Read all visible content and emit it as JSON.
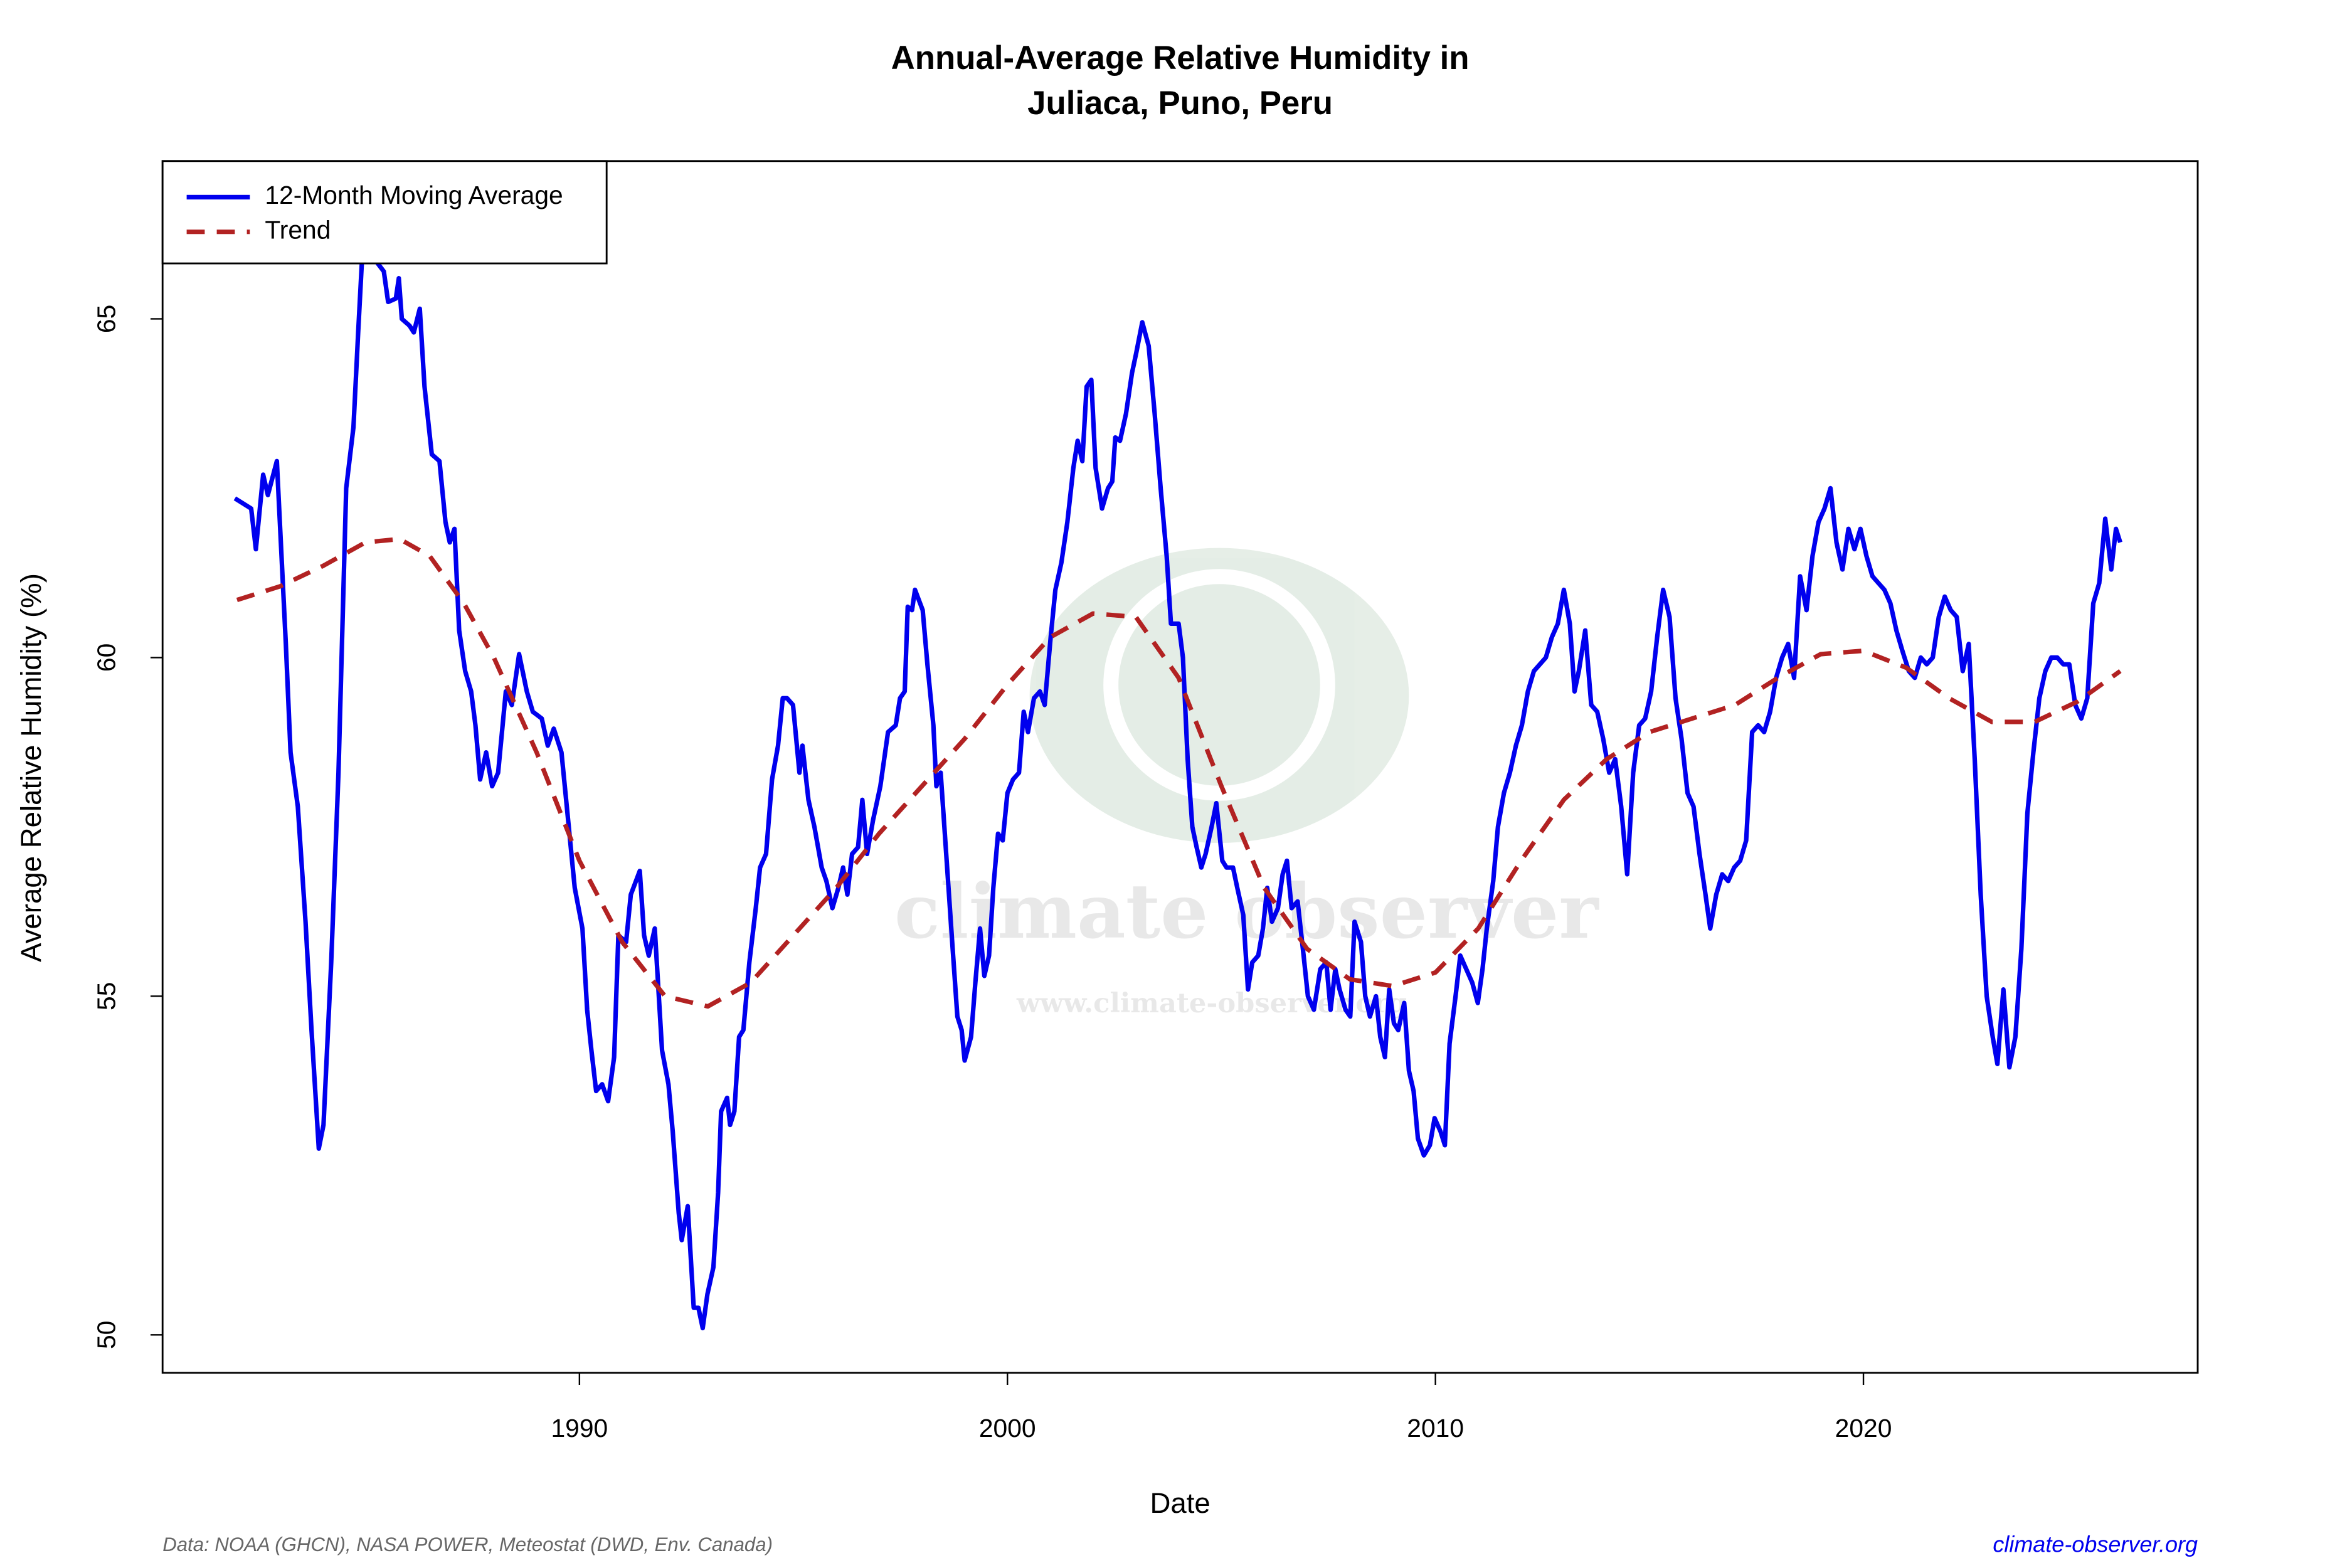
{
  "chart_data": {
    "type": "line",
    "title": "Annual-Average Relative Humidity in",
    "subtitle": "Juliaca, Puno, Peru",
    "x_label": "Date",
    "y_label": "Average Relative Humidity (%)",
    "source": "Data: NOAA (GHCN), NASA POWER, Meteostat (DWD, Env. Canada)",
    "site": "climate-observer.org",
    "watermark": "climate observer",
    "watermark_url": "www.climate-observer.org",
    "xlim": [
      1980.26,
      2027.81
    ],
    "ylim": [
      49.44,
      67.33
    ],
    "xticks": [
      1990,
      2000,
      2010,
      2020
    ],
    "yticks": [
      50,
      55,
      60,
      65
    ],
    "legend": "top-left",
    "series": [
      {
        "name": "12-Month Moving Average",
        "color": "#0000ee",
        "style": "solid",
        "x": [
          1981.95,
          1982.33,
          1982.44,
          1982.61,
          1982.72,
          1982.93,
          1983.14,
          1983.25,
          1983.42,
          1983.6,
          1983.74,
          1983.91,
          1984.02,
          1984.2,
          1984.37,
          1984.55,
          1984.72,
          1984.83,
          1984.93,
          1985.25,
          1985.43,
          1985.53,
          1985.71,
          1985.78,
          1985.85,
          1986.03,
          1986.13,
          1986.27,
          1986.38,
          1986.55,
          1986.73,
          1986.87,
          1986.97,
          1987.08,
          1987.19,
          1987.33,
          1987.47,
          1987.57,
          1987.68,
          1987.82,
          1987.96,
          1988.1,
          1988.28,
          1988.42,
          1988.59,
          1988.77,
          1988.91,
          1989.12,
          1989.26,
          1989.4,
          1989.58,
          1989.72,
          1989.89,
          1990.07,
          1990.18,
          1990.28,
          1990.39,
          1990.53,
          1990.67,
          1990.81,
          1990.91,
          1991.09,
          1991.2,
          1991.41,
          1991.51,
          1991.62,
          1991.76,
          1991.93,
          1992.08,
          1992.18,
          1992.32,
          1992.39,
          1992.53,
          1992.67,
          1992.78,
          1992.88,
          1992.99,
          1993.13,
          1993.24,
          1993.31,
          1993.45,
          1993.52,
          1993.62,
          1993.73,
          1993.83,
          1993.97,
          1994.12,
          1994.22,
          1994.36,
          1994.5,
          1994.64,
          1994.75,
          1994.85,
          1994.99,
          1995.14,
          1995.21,
          1995.35,
          1995.49,
          1995.66,
          1995.77,
          1995.91,
          1996.05,
          1996.16,
          1996.26,
          1996.37,
          1996.51,
          1996.61,
          1996.72,
          1996.86,
          1997.03,
          1997.21,
          1997.39,
          1997.49,
          1997.6,
          1997.67,
          1997.77,
          1997.84,
          1998.02,
          1998.13,
          1998.27,
          1998.34,
          1998.44,
          1998.58,
          1998.72,
          1998.83,
          1998.93,
          1999.0,
          1999.15,
          1999.25,
          1999.36,
          1999.46,
          1999.57,
          1999.67,
          1999.78,
          1999.89,
          2000.0,
          2000.13,
          2000.27,
          2000.38,
          2000.48,
          2000.62,
          2000.76,
          2000.87,
          2001.01,
          2001.12,
          2001.26,
          2001.4,
          2001.54,
          2001.64,
          2001.75,
          2001.85,
          2001.96,
          2002.06,
          2002.21,
          2002.35,
          2002.45,
          2002.52,
          2002.63,
          2002.77,
          2002.91,
          2003.01,
          2003.15,
          2003.3,
          2003.44,
          2003.58,
          2003.72,
          2003.82,
          2004.0,
          2004.1,
          2004.21,
          2004.32,
          2004.42,
          2004.53,
          2004.63,
          2004.77,
          2004.88,
          2005.02,
          2005.12,
          2005.27,
          2005.37,
          2005.51,
          2005.62,
          2005.72,
          2005.86,
          2005.97,
          2006.07,
          2006.18,
          2006.32,
          2006.43,
          2006.53,
          2006.64,
          2006.78,
          2006.92,
          2007.02,
          2007.16,
          2007.31,
          2007.45,
          2007.55,
          2007.66,
          2007.76,
          2007.9,
          2008.01,
          2008.11,
          2008.26,
          2008.36,
          2008.47,
          2008.61,
          2008.71,
          2008.82,
          2008.92,
          2009.03,
          2009.13,
          2009.27,
          2009.38,
          2009.49,
          2009.59,
          2009.73,
          2009.87,
          2009.98,
          2010.12,
          2010.22,
          2010.33,
          2010.47,
          2010.58,
          2010.72,
          2010.86,
          2010.99,
          2011.1,
          2011.2,
          2011.35,
          2011.46,
          2011.6,
          2011.74,
          2011.88,
          2012.02,
          2012.16,
          2012.3,
          2012.44,
          2012.58,
          2012.72,
          2012.86,
          2013.0,
          2013.14,
          2013.25,
          2013.35,
          2013.5,
          2013.64,
          2013.78,
          2013.92,
          2014.06,
          2014.2,
          2014.34,
          2014.48,
          2014.62,
          2014.76,
          2014.9,
          2015.04,
          2015.18,
          2015.32,
          2015.47,
          2015.61,
          2015.75,
          2015.89,
          2016.03,
          2016.17,
          2016.31,
          2016.42,
          2016.56,
          2016.7,
          2016.84,
          2016.98,
          2017.12,
          2017.26,
          2017.4,
          2017.54,
          2017.68,
          2017.82,
          2017.96,
          2018.1,
          2018.24,
          2018.38,
          2018.52,
          2018.67,
          2018.81,
          2018.95,
          2019.09,
          2019.23,
          2019.37,
          2019.51,
          2019.65,
          2019.79,
          2019.93,
          2020.07,
          2020.21,
          2020.35,
          2020.49,
          2020.63,
          2020.77,
          2020.91,
          2021.06,
          2021.2,
          2021.34,
          2021.48,
          2021.62,
          2021.76,
          2021.9,
          2022.04,
          2022.18,
          2022.32,
          2022.46,
          2022.6,
          2022.74,
          2022.88,
          2023.02,
          2023.13,
          2023.27,
          2023.41,
          2023.55,
          2023.69,
          2023.83,
          2023.97,
          2024.11,
          2024.25,
          2024.39,
          2024.53,
          2024.67,
          2024.81,
          2024.95,
          2025.09,
          2025.23,
          2025.37,
          2025.51,
          2025.65,
          2025.79,
          2025.9,
          2026.0
        ],
        "values": [
          62.35,
          62.2,
          61.6,
          62.7,
          62.4,
          62.9,
          60.2,
          58.6,
          57.8,
          56.1,
          54.5,
          52.75,
          53.1,
          55.5,
          58.3,
          62.5,
          63.4,
          64.8,
          66.0,
          65.85,
          65.7,
          65.25,
          65.3,
          65.6,
          65.0,
          64.9,
          64.8,
          65.15,
          64.0,
          63.0,
          62.9,
          62.0,
          61.7,
          61.9,
          60.4,
          59.8,
          59.5,
          59.0,
          58.2,
          58.6,
          58.1,
          58.3,
          59.5,
          59.3,
          60.05,
          59.5,
          59.2,
          59.1,
          58.7,
          58.95,
          58.6,
          57.7,
          56.6,
          56.0,
          54.8,
          54.2,
          53.6,
          53.7,
          53.45,
          54.1,
          55.9,
          55.8,
          56.5,
          56.85,
          55.9,
          55.6,
          56.0,
          54.2,
          53.7,
          53.0,
          51.8,
          51.4,
          51.9,
          50.4,
          50.4,
          50.1,
          50.6,
          51.0,
          52.1,
          53.3,
          53.5,
          53.1,
          53.3,
          54.4,
          54.5,
          55.5,
          56.3,
          56.9,
          57.1,
          58.2,
          58.7,
          59.4,
          59.4,
          59.3,
          58.3,
          58.7,
          57.9,
          57.5,
          56.9,
          56.7,
          56.3,
          56.6,
          56.9,
          56.5,
          57.1,
          57.2,
          57.9,
          57.1,
          57.6,
          58.1,
          58.9,
          59.0,
          59.4,
          59.5,
          60.75,
          60.7,
          61.0,
          60.7,
          59.9,
          59.0,
          58.1,
          58.3,
          57.0,
          55.7,
          54.7,
          54.5,
          54.05,
          54.4,
          55.2,
          56.0,
          55.3,
          55.6,
          56.6,
          57.4,
          57.3,
          58.0,
          58.2,
          58.3,
          59.2,
          58.9,
          59.4,
          59.5,
          59.3,
          60.3,
          61.0,
          61.4,
          62.0,
          62.8,
          63.2,
          62.9,
          64.0,
          64.1,
          62.8,
          62.2,
          62.5,
          62.6,
          63.25,
          63.2,
          63.6,
          64.2,
          64.5,
          64.95,
          64.6,
          63.6,
          62.5,
          61.5,
          60.5,
          60.5,
          60.0,
          58.5,
          57.5,
          57.2,
          56.9,
          57.1,
          57.5,
          57.85,
          57.0,
          56.9,
          56.9,
          56.6,
          56.2,
          55.1,
          55.5,
          55.6,
          56.0,
          56.6,
          56.1,
          56.3,
          56.8,
          57.0,
          56.3,
          56.4,
          55.6,
          55.0,
          54.8,
          55.4,
          55.5,
          54.8,
          55.4,
          55.1,
          54.8,
          54.7,
          56.1,
          55.8,
          55.0,
          54.7,
          55.0,
          54.4,
          54.1,
          55.1,
          54.6,
          54.5,
          54.9,
          53.9,
          53.6,
          52.9,
          52.65,
          52.8,
          53.2,
          53.0,
          52.8,
          54.3,
          55.0,
          55.6,
          55.4,
          55.2,
          54.9,
          55.4,
          56.0,
          56.7,
          57.5,
          58.0,
          58.3,
          58.7,
          59.0,
          59.5,
          59.8,
          59.9,
          60.0,
          60.3,
          60.5,
          61.0,
          60.5,
          59.5,
          59.8,
          60.4,
          59.3,
          59.2,
          58.8,
          58.3,
          58.5,
          57.8,
          56.8,
          58.3,
          59.0,
          59.1,
          59.5,
          60.3,
          61.0,
          60.6,
          59.4,
          58.8,
          58.0,
          57.8,
          57.1,
          56.5,
          56.0,
          56.5,
          56.8,
          56.7,
          56.9,
          57.0,
          57.3,
          58.9,
          59.0,
          58.9,
          59.2,
          59.7,
          60.0,
          60.2,
          59.7,
          61.2,
          60.7,
          61.5,
          62.0,
          62.2,
          62.5,
          61.7,
          61.3,
          61.9,
          61.6,
          61.9,
          61.5,
          61.2,
          61.1,
          61.0,
          60.8,
          60.4,
          60.1,
          59.8,
          59.7,
          60.0,
          59.9,
          60.0,
          60.6,
          60.9,
          60.7,
          60.6,
          59.8,
          60.2,
          58.5,
          56.5,
          55.0,
          54.4,
          54.0,
          55.1,
          53.95,
          54.4,
          55.7,
          57.7,
          58.6,
          59.4,
          59.8,
          60.0,
          60.0,
          59.9,
          59.9,
          59.3,
          59.1,
          59.4,
          60.8,
          61.1,
          62.05,
          61.3,
          61.9,
          61.7
        ]
      },
      {
        "name": "Trend",
        "color": "#b22222",
        "style": "dashed",
        "x": [
          1982,
          1983,
          1984,
          1985,
          1985.8,
          1986.5,
          1987.3,
          1988,
          1989,
          1990,
          1991,
          1992,
          1993,
          1994,
          1995,
          1996,
          1997,
          1998,
          1999,
          2000,
          2001,
          2002,
          2003,
          2004,
          2005,
          2006,
          2007,
          2008,
          2009,
          2010,
          2011,
          2012,
          2013,
          2014,
          2015,
          2016,
          2017,
          2018,
          2019,
          2020,
          2021,
          2022,
          2023,
          2024,
          2025,
          2026
        ],
        "values": [
          60.85,
          61.05,
          61.35,
          61.7,
          61.75,
          61.5,
          60.8,
          60.0,
          58.6,
          57.0,
          55.8,
          55.0,
          54.85,
          55.2,
          55.9,
          56.6,
          57.4,
          58.1,
          58.8,
          59.6,
          60.3,
          60.65,
          60.6,
          59.7,
          58.1,
          56.6,
          55.7,
          55.25,
          55.15,
          55.35,
          56.0,
          57.0,
          57.9,
          58.5,
          58.9,
          59.1,
          59.3,
          59.7,
          60.05,
          60.1,
          59.85,
          59.4,
          59.05,
          59.05,
          59.35,
          59.8
        ]
      }
    ]
  }
}
